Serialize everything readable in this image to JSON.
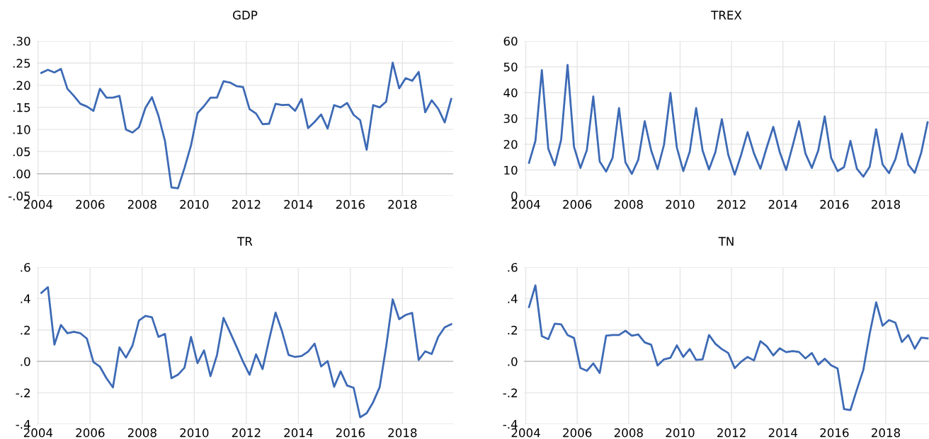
{
  "chart_data": [
    {
      "type": "line",
      "title": "GDP",
      "x": [
        2004.125,
        2004.375,
        2004.625,
        2004.875,
        2005.125,
        2005.375,
        2005.625,
        2005.875,
        2006.125,
        2006.375,
        2006.625,
        2006.875,
        2007.125,
        2007.375,
        2007.625,
        2007.875,
        2008.125,
        2008.375,
        2008.625,
        2008.875,
        2009.125,
        2009.375,
        2009.625,
        2009.875,
        2010.125,
        2010.375,
        2010.625,
        2010.875,
        2011.125,
        2011.375,
        2011.625,
        2011.875,
        2012.125,
        2012.375,
        2012.625,
        2012.875,
        2013.125,
        2013.375,
        2013.625,
        2013.875,
        2014.125,
        2014.375,
        2014.625,
        2014.875,
        2015.125,
        2015.375,
        2015.625,
        2015.875,
        2016.125,
        2016.375,
        2016.625,
        2016.875,
        2017.125,
        2017.375,
        2017.625,
        2017.875,
        2018.125,
        2018.375,
        2018.625,
        2018.875,
        2019.125,
        2019.375,
        2019.625,
        2019.875
      ],
      "series": [
        {
          "color": "#3d6ab5",
          "values": [
            0.228,
            0.235,
            0.229,
            0.237,
            0.192,
            0.176,
            0.158,
            0.152,
            0.142,
            0.192,
            0.172,
            0.172,
            0.176,
            0.1,
            0.093,
            0.105,
            0.149,
            0.173,
            0.131,
            0.074,
            -0.031,
            -0.033,
            0.013,
            0.064,
            0.137,
            0.153,
            0.172,
            0.172,
            0.209,
            0.206,
            0.198,
            0.196,
            0.146,
            0.136,
            0.112,
            0.113,
            0.158,
            0.155,
            0.156,
            0.142,
            0.169,
            0.103,
            0.117,
            0.134,
            0.102,
            0.155,
            0.15,
            0.16,
            0.133,
            0.121,
            0.054,
            0.155,
            0.15,
            0.163,
            0.251,
            0.193,
            0.216,
            0.21,
            0.23,
            0.139,
            0.166,
            0.147,
            0.116,
            0.169
          ]
        }
      ],
      "xlim": [
        2003.95,
        2019.95
      ],
      "xticks": [
        2004,
        2006,
        2008,
        2010,
        2012,
        2014,
        2016,
        2018
      ],
      "ylim": [
        -0.05,
        0.3
      ],
      "yticks": [
        {
          "value": -0.05,
          "label": "-.05"
        },
        {
          "value": 0.0,
          "label": ".00"
        },
        {
          "value": 0.05,
          "label": ".05"
        },
        {
          "value": 0.1,
          "label": ".10"
        },
        {
          "value": 0.15,
          "label": ".15"
        },
        {
          "value": 0.2,
          "label": ".20"
        },
        {
          "value": 0.25,
          "label": ".25"
        },
        {
          "value": 0.3,
          "label": ".30"
        }
      ],
      "grid": true,
      "ref_lines": [
        {
          "axis": "y",
          "value": 0,
          "color": "#c0c0c0"
        }
      ]
    },
    {
      "type": "line",
      "title": "TREX",
      "x": [
        2004.125,
        2004.375,
        2004.625,
        2004.875,
        2005.125,
        2005.375,
        2005.625,
        2005.875,
        2006.125,
        2006.375,
        2006.625,
        2006.875,
        2007.125,
        2007.375,
        2007.625,
        2007.875,
        2008.125,
        2008.375,
        2008.625,
        2008.875,
        2009.125,
        2009.375,
        2009.625,
        2009.875,
        2010.125,
        2010.375,
        2010.625,
        2010.875,
        2011.125,
        2011.375,
        2011.625,
        2011.875,
        2012.125,
        2012.375,
        2012.625,
        2012.875,
        2013.125,
        2013.375,
        2013.625,
        2013.875,
        2014.125,
        2014.375,
        2014.625,
        2014.875,
        2015.125,
        2015.375,
        2015.625,
        2015.875,
        2016.125,
        2016.375,
        2016.625,
        2016.875,
        2017.125,
        2017.375,
        2017.625,
        2017.875,
        2018.125,
        2018.375,
        2018.625,
        2018.875,
        2019.125,
        2019.375,
        2019.625
      ],
      "series": [
        {
          "color": "#3d6ab5",
          "values": [
            12.8,
            21.3,
            48.7,
            18.3,
            11.8,
            21.7,
            50.7,
            19.0,
            10.8,
            17.7,
            38.5,
            13.3,
            9.4,
            14.7,
            34.0,
            13.0,
            8.5,
            14.0,
            28.9,
            17.6,
            10.3,
            19.8,
            39.9,
            18.7,
            9.6,
            17.1,
            34.0,
            17.6,
            10.2,
            17.0,
            29.7,
            15.9,
            8.2,
            15.9,
            24.7,
            16.4,
            10.5,
            18.9,
            26.7,
            17.0,
            10.0,
            19.3,
            28.9,
            16.4,
            10.8,
            17.6,
            30.8,
            14.7,
            9.6,
            11.1,
            21.3,
            10.5,
            7.4,
            11.3,
            25.8,
            12.2,
            8.8,
            14.2,
            24.1,
            12.1,
            8.9,
            16.6,
            28.5
          ]
        }
      ],
      "xlim": [
        2003.93,
        2019.68
      ],
      "xticks": [
        2004,
        2006,
        2008,
        2010,
        2012,
        2014,
        2016,
        2018
      ],
      "ylim": [
        0,
        60
      ],
      "yticks": [
        0,
        10,
        20,
        30,
        40,
        50,
        60
      ],
      "grid": true
    },
    {
      "type": "line",
      "title": "TR",
      "x": [
        2004.125,
        2004.375,
        2004.625,
        2004.875,
        2005.125,
        2005.375,
        2005.625,
        2005.875,
        2006.125,
        2006.375,
        2006.625,
        2006.875,
        2007.125,
        2007.375,
        2007.625,
        2007.875,
        2008.125,
        2008.375,
        2008.625,
        2008.875,
        2009.125,
        2009.375,
        2009.625,
        2009.875,
        2010.125,
        2010.375,
        2010.625,
        2010.875,
        2011.125,
        2011.375,
        2011.625,
        2011.875,
        2012.125,
        2012.375,
        2012.625,
        2012.875,
        2013.125,
        2013.375,
        2013.625,
        2013.875,
        2014.125,
        2014.375,
        2014.625,
        2014.875,
        2015.125,
        2015.375,
        2015.625,
        2015.875,
        2016.125,
        2016.375,
        2016.625,
        2016.875,
        2017.125,
        2017.375,
        2017.625,
        2017.875,
        2018.125,
        2018.375,
        2018.625,
        2018.875,
        2019.125,
        2019.375,
        2019.625,
        2019.875
      ],
      "series": [
        {
          "color": "#3d6ab5",
          "values": [
            0.437,
            0.473,
            0.107,
            0.232,
            0.179,
            0.188,
            0.179,
            0.145,
            -0.004,
            -0.034,
            -0.107,
            -0.166,
            0.089,
            0.024,
            0.1,
            0.26,
            0.29,
            0.281,
            0.156,
            0.175,
            -0.107,
            -0.085,
            -0.04,
            0.156,
            -0.011,
            0.07,
            -0.094,
            0.041,
            0.277,
            0.186,
            0.094,
            -0.002,
            -0.085,
            0.045,
            -0.049,
            0.137,
            0.311,
            0.19,
            0.041,
            0.028,
            0.034,
            0.062,
            0.113,
            -0.032,
            0.002,
            -0.162,
            -0.064,
            -0.154,
            -0.168,
            -0.356,
            -0.33,
            -0.26,
            -0.164,
            0.094,
            0.395,
            0.269,
            0.296,
            0.309,
            0.009,
            0.064,
            0.047,
            0.156,
            0.217,
            0.237
          ]
        }
      ],
      "xlim": [
        2003.95,
        2019.95
      ],
      "xticks": [
        2004,
        2006,
        2008,
        2010,
        2012,
        2014,
        2016,
        2018
      ],
      "ylim": [
        -0.4,
        0.6
      ],
      "yticks": [
        {
          "value": -0.4,
          "label": "-.4"
        },
        {
          "value": -0.2,
          "label": "-.2"
        },
        {
          "value": 0.0,
          "label": ".0"
        },
        {
          "value": 0.2,
          "label": ".2"
        },
        {
          "value": 0.4,
          "label": ".4"
        },
        {
          "value": 0.6,
          "label": ".6"
        }
      ],
      "grid": true,
      "ref_lines": [
        {
          "axis": "y",
          "value": 0,
          "color": "#c0c0c0"
        }
      ]
    },
    {
      "type": "line",
      "title": "TN",
      "x": [
        2004.125,
        2004.375,
        2004.625,
        2004.875,
        2005.125,
        2005.375,
        2005.625,
        2005.875,
        2006.125,
        2006.375,
        2006.625,
        2006.875,
        2007.125,
        2007.375,
        2007.625,
        2007.875,
        2008.125,
        2008.375,
        2008.625,
        2008.875,
        2009.125,
        2009.375,
        2009.625,
        2009.875,
        2010.125,
        2010.375,
        2010.625,
        2010.875,
        2011.125,
        2011.375,
        2011.625,
        2011.875,
        2012.125,
        2012.375,
        2012.625,
        2012.875,
        2013.125,
        2013.375,
        2013.625,
        2013.875,
        2014.125,
        2014.375,
        2014.625,
        2014.875,
        2015.125,
        2015.375,
        2015.625,
        2015.875,
        2016.125,
        2016.375,
        2016.625,
        2016.875,
        2017.125,
        2017.375,
        2017.625,
        2017.875,
        2018.125,
        2018.375,
        2018.625,
        2018.875,
        2019.125,
        2019.375,
        2019.625
      ],
      "series": [
        {
          "color": "#3d6ab5",
          "values": [
            0.346,
            0.484,
            0.161,
            0.142,
            0.24,
            0.236,
            0.168,
            0.149,
            -0.042,
            -0.06,
            -0.013,
            -0.074,
            0.164,
            0.168,
            0.168,
            0.195,
            0.164,
            0.172,
            0.121,
            0.106,
            -0.026,
            0.013,
            0.023,
            0.102,
            0.028,
            0.079,
            0.009,
            0.013,
            0.168,
            0.112,
            0.078,
            0.053,
            -0.043,
            -0.002,
            0.028,
            0.006,
            0.129,
            0.096,
            0.038,
            0.083,
            0.059,
            0.066,
            0.06,
            0.019,
            0.053,
            -0.021,
            0.017,
            -0.025,
            -0.045,
            -0.304,
            -0.31,
            -0.18,
            -0.055,
            0.178,
            0.376,
            0.227,
            0.263,
            0.246,
            0.123,
            0.168,
            0.081,
            0.151,
            0.146
          ]
        }
      ],
      "xlim": [
        2003.93,
        2019.68
      ],
      "xticks": [
        2004,
        2006,
        2008,
        2010,
        2012,
        2014,
        2016,
        2018
      ],
      "ylim": [
        -0.4,
        0.6
      ],
      "yticks": [
        {
          "value": -0.4,
          "label": "-.4"
        },
        {
          "value": -0.2,
          "label": "-.2"
        },
        {
          "value": 0.0,
          "label": ".0"
        },
        {
          "value": 0.2,
          "label": ".2"
        },
        {
          "value": 0.4,
          "label": ".4"
        },
        {
          "value": 0.6,
          "label": ".6"
        }
      ],
      "grid": true,
      "ref_lines": [
        {
          "axis": "y",
          "value": 0,
          "color": "#c0c0c0"
        }
      ]
    }
  ]
}
